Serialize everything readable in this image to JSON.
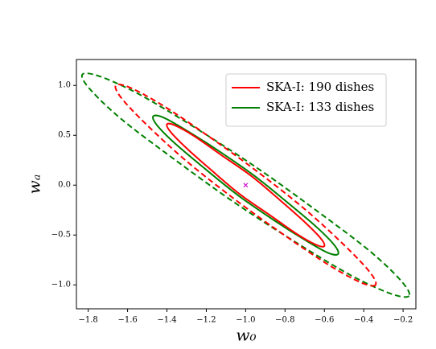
{
  "chart_data": {
    "type": "line",
    "xlabel": "w₀",
    "ylabel": "wₐ",
    "xlim": [
      -1.86,
      -0.135
    ],
    "ylim": [
      -1.24,
      1.26
    ],
    "xticks": [
      {
        "value": -1.8,
        "label": "−1.8"
      },
      {
        "value": -1.6,
        "label": "−1.6"
      },
      {
        "value": -1.4,
        "label": "−1.4"
      },
      {
        "value": -1.2,
        "label": "−1.2"
      },
      {
        "value": -1.0,
        "label": "−1.0"
      },
      {
        "value": -0.8,
        "label": "−0.8"
      },
      {
        "value": -0.6,
        "label": "−0.6"
      },
      {
        "value": -0.4,
        "label": "−0.4"
      },
      {
        "value": -0.2,
        "label": "−0.2"
      }
    ],
    "yticks": [
      {
        "value": -1.0,
        "label": "−1.0"
      },
      {
        "value": -0.5,
        "label": "−0.5"
      },
      {
        "value": 0.0,
        "label": "0.0"
      },
      {
        "value": 0.5,
        "label": "0.5"
      },
      {
        "value": 1.0,
        "label": "1.0"
      }
    ],
    "grid": false,
    "legend": "upper right",
    "series": [
      {
        "color": "#008000",
        "linestyle": "dashed",
        "x": [
          -0.17,
          -0.26,
          -0.46,
          -0.74,
          -1.06,
          -1.37,
          -1.63,
          -1.79,
          -1.83,
          -1.74,
          -1.54,
          -1.26,
          -0.94,
          -0.63,
          -0.37,
          -0.21
        ],
        "y": [
          -1.11,
          -1.09,
          -0.91,
          -0.58,
          -0.17,
          0.27,
          0.66,
          0.96,
          1.11,
          1.09,
          0.91,
          0.58,
          0.17,
          -0.27,
          -0.66,
          -0.96
        ]
      },
      {
        "color": "#ff0000",
        "linestyle": "dashed",
        "x": [
          -0.34,
          -0.41,
          -0.57,
          -0.79,
          -1.05,
          -1.3,
          -1.5,
          -1.63,
          -1.66,
          -1.59,
          -1.43,
          -1.21,
          -0.95,
          -0.7,
          -0.5,
          -0.37
        ],
        "y": [
          -1.0,
          -0.98,
          -0.81,
          -0.52,
          -0.15,
          0.24,
          0.6,
          0.87,
          1.0,
          0.98,
          0.81,
          0.52,
          0.15,
          -0.24,
          -0.6,
          -0.87
        ]
      },
      {
        "name": "SKA-I: 133 dishes",
        "color": "#008000",
        "linestyle": "solid",
        "x": [
          -0.53,
          -0.58,
          -0.69,
          -0.85,
          -1.04,
          -1.21,
          -1.36,
          -1.45,
          -1.47,
          -1.42,
          -1.31,
          -1.15,
          -0.96,
          -0.79,
          -0.64,
          -0.55
        ],
        "y": [
          -0.69,
          -0.68,
          -0.56,
          -0.36,
          -0.1,
          0.17,
          0.42,
          0.6,
          0.69,
          0.68,
          0.56,
          0.36,
          0.1,
          -0.17,
          -0.42,
          -0.6
        ]
      },
      {
        "name": "SKA-I: 190 dishes",
        "color": "#ff0000",
        "linestyle": "solid",
        "x": [
          -0.6,
          -0.64,
          -0.74,
          -0.87,
          -1.03,
          -1.18,
          -1.3,
          -1.38,
          -1.4,
          -1.36,
          -1.26,
          -1.13,
          -0.97,
          -0.82,
          -0.7,
          -0.62
        ],
        "y": [
          -0.61,
          -0.6,
          -0.49,
          -0.31,
          -0.09,
          0.16,
          0.37,
          0.53,
          0.61,
          0.6,
          0.49,
          0.31,
          0.09,
          -0.16,
          -0.37,
          -0.53
        ]
      }
    ],
    "points": [
      {
        "x": -1.0,
        "y": 0.0,
        "color": "#cc00cc",
        "marker": "x"
      }
    ]
  }
}
